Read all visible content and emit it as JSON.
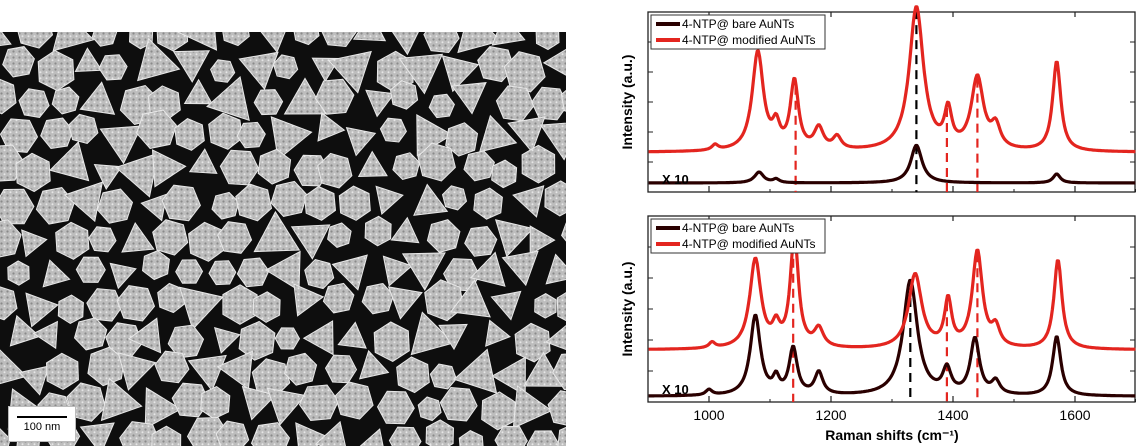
{
  "sem": {
    "scale_label": "100 nm"
  },
  "chart_data": [
    {
      "type": "line",
      "title": "",
      "xlabel": "",
      "ylabel": "Intensity (a.u.)",
      "xlim": [
        900,
        1700
      ],
      "ticks_x": [
        1000,
        1200,
        1400,
        1600
      ],
      "annotation": "X 10",
      "legend_position": "top-left",
      "series": [
        {
          "name": "4-NTP@ bare AuNTs",
          "color": "#2a0000",
          "baseline": 0.05,
          "peaks": [
            {
              "x": 1082,
              "h": 0.06,
              "w": 9
            },
            {
              "x": 1110,
              "h": 0.02,
              "w": 6
            },
            {
              "x": 1340,
              "h": 0.21,
              "w": 11
            },
            {
              "x": 1570,
              "h": 0.05,
              "w": 7
            }
          ]
        },
        {
          "name": "4-NTP@ modified AuNTs",
          "color": "#e3251f",
          "baseline": 0.22,
          "peaks": [
            {
              "x": 1010,
              "h": 0.03,
              "w": 6
            },
            {
              "x": 1080,
              "h": 0.55,
              "w": 11
            },
            {
              "x": 1110,
              "h": 0.12,
              "w": 7
            },
            {
              "x": 1140,
              "h": 0.38,
              "w": 8
            },
            {
              "x": 1180,
              "h": 0.12,
              "w": 9
            },
            {
              "x": 1210,
              "h": 0.07,
              "w": 8
            },
            {
              "x": 1340,
              "h": 0.8,
              "w": 14
            },
            {
              "x": 1392,
              "h": 0.2,
              "w": 7
            },
            {
              "x": 1440,
              "h": 0.4,
              "w": 12
            },
            {
              "x": 1470,
              "h": 0.12,
              "w": 9
            },
            {
              "x": 1570,
              "h": 0.5,
              "w": 8
            }
          ]
        }
      ],
      "markers": [
        {
          "x": 1340,
          "color": "#000000"
        },
        {
          "x": 1142,
          "color": "#e3251f"
        },
        {
          "x": 1390,
          "color": "#e3251f"
        },
        {
          "x": 1440,
          "color": "#e3251f"
        }
      ]
    },
    {
      "type": "line",
      "title": "",
      "xlabel": "Raman shifts (cm⁻¹)",
      "ylabel": "Intensity (a.u.)",
      "xlim": [
        900,
        1700
      ],
      "ticks_x": [
        1000,
        1200,
        1400,
        1600
      ],
      "annotation": "X 10",
      "legend_position": "top-left",
      "series": [
        {
          "name": "4-NTP@ bare AuNTs",
          "color": "#2a0000",
          "baseline": 0.03,
          "peaks": [
            {
              "x": 1000,
              "h": 0.03,
              "w": 6
            },
            {
              "x": 1076,
              "h": 0.43,
              "w": 10
            },
            {
              "x": 1110,
              "h": 0.08,
              "w": 6
            },
            {
              "x": 1138,
              "h": 0.25,
              "w": 8
            },
            {
              "x": 1180,
              "h": 0.12,
              "w": 8
            },
            {
              "x": 1330,
              "h": 0.62,
              "w": 14
            },
            {
              "x": 1390,
              "h": 0.13,
              "w": 8
            },
            {
              "x": 1436,
              "h": 0.3,
              "w": 9
            },
            {
              "x": 1470,
              "h": 0.07,
              "w": 8
            },
            {
              "x": 1570,
              "h": 0.32,
              "w": 8
            }
          ]
        },
        {
          "name": "4-NTP@ modified AuNTs",
          "color": "#e3251f",
          "baseline": 0.28,
          "peaks": [
            {
              "x": 1005,
              "h": 0.03,
              "w": 6
            },
            {
              "x": 1076,
              "h": 0.48,
              "w": 11
            },
            {
              "x": 1110,
              "h": 0.1,
              "w": 7
            },
            {
              "x": 1140,
              "h": 0.6,
              "w": 8
            },
            {
              "x": 1180,
              "h": 0.1,
              "w": 9
            },
            {
              "x": 1338,
              "h": 0.4,
              "w": 13
            },
            {
              "x": 1392,
              "h": 0.25,
              "w": 7
            },
            {
              "x": 1440,
              "h": 0.52,
              "w": 10
            },
            {
              "x": 1470,
              "h": 0.1,
              "w": 8
            },
            {
              "x": 1572,
              "h": 0.48,
              "w": 8
            }
          ]
        }
      ],
      "markers": [
        {
          "x": 1330,
          "color": "#000000"
        },
        {
          "x": 1138,
          "color": "#e3251f"
        },
        {
          "x": 1390,
          "color": "#e3251f"
        },
        {
          "x": 1440,
          "color": "#e3251f"
        }
      ]
    }
  ]
}
